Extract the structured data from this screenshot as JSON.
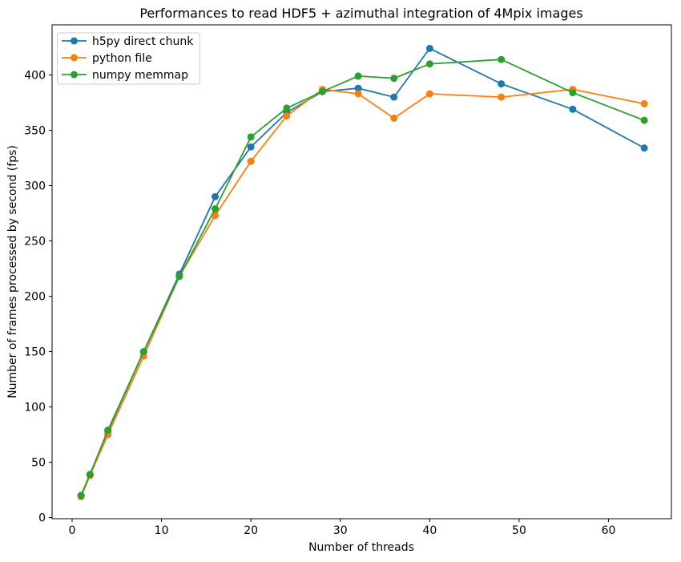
{
  "chart_data": {
    "type": "line",
    "title": "Performances to read HDF5 + azimuthal integration of 4Mpix images",
    "xlabel": "Number of threads",
    "ylabel": "Number of frames processed by second (fps)",
    "x": [
      1,
      2,
      4,
      8,
      12,
      16,
      20,
      24,
      28,
      32,
      36,
      40,
      48,
      56,
      64
    ],
    "series": [
      {
        "name": "h5py direct chunk",
        "color": "#1f77b4",
        "values": [
          20,
          39,
          78,
          150,
          220,
          290,
          335,
          366,
          385,
          388,
          380,
          424,
          392,
          369,
          334
        ]
      },
      {
        "name": "python file",
        "color": "#ff7f0e",
        "values": [
          19,
          38,
          75,
          146,
          218,
          273,
          322,
          363,
          387,
          383,
          361,
          383,
          380,
          387,
          374
        ]
      },
      {
        "name": "numpy memmap",
        "color": "#2ca02c",
        "values": [
          20,
          39,
          79,
          150,
          218,
          279,
          344,
          370,
          385,
          399,
          397,
          410,
          414,
          384,
          359
        ]
      }
    ],
    "xticks": [
      0,
      10,
      20,
      30,
      40,
      50,
      60
    ],
    "yticks": [
      0,
      50,
      100,
      150,
      200,
      250,
      300,
      350,
      400
    ],
    "xlim": [
      -2.24,
      67.03
    ],
    "ylim": [
      -1,
      445.3
    ],
    "grid": false,
    "legend_position": "upper left",
    "axis_color": "#000000",
    "background_color": "#ffffff"
  }
}
